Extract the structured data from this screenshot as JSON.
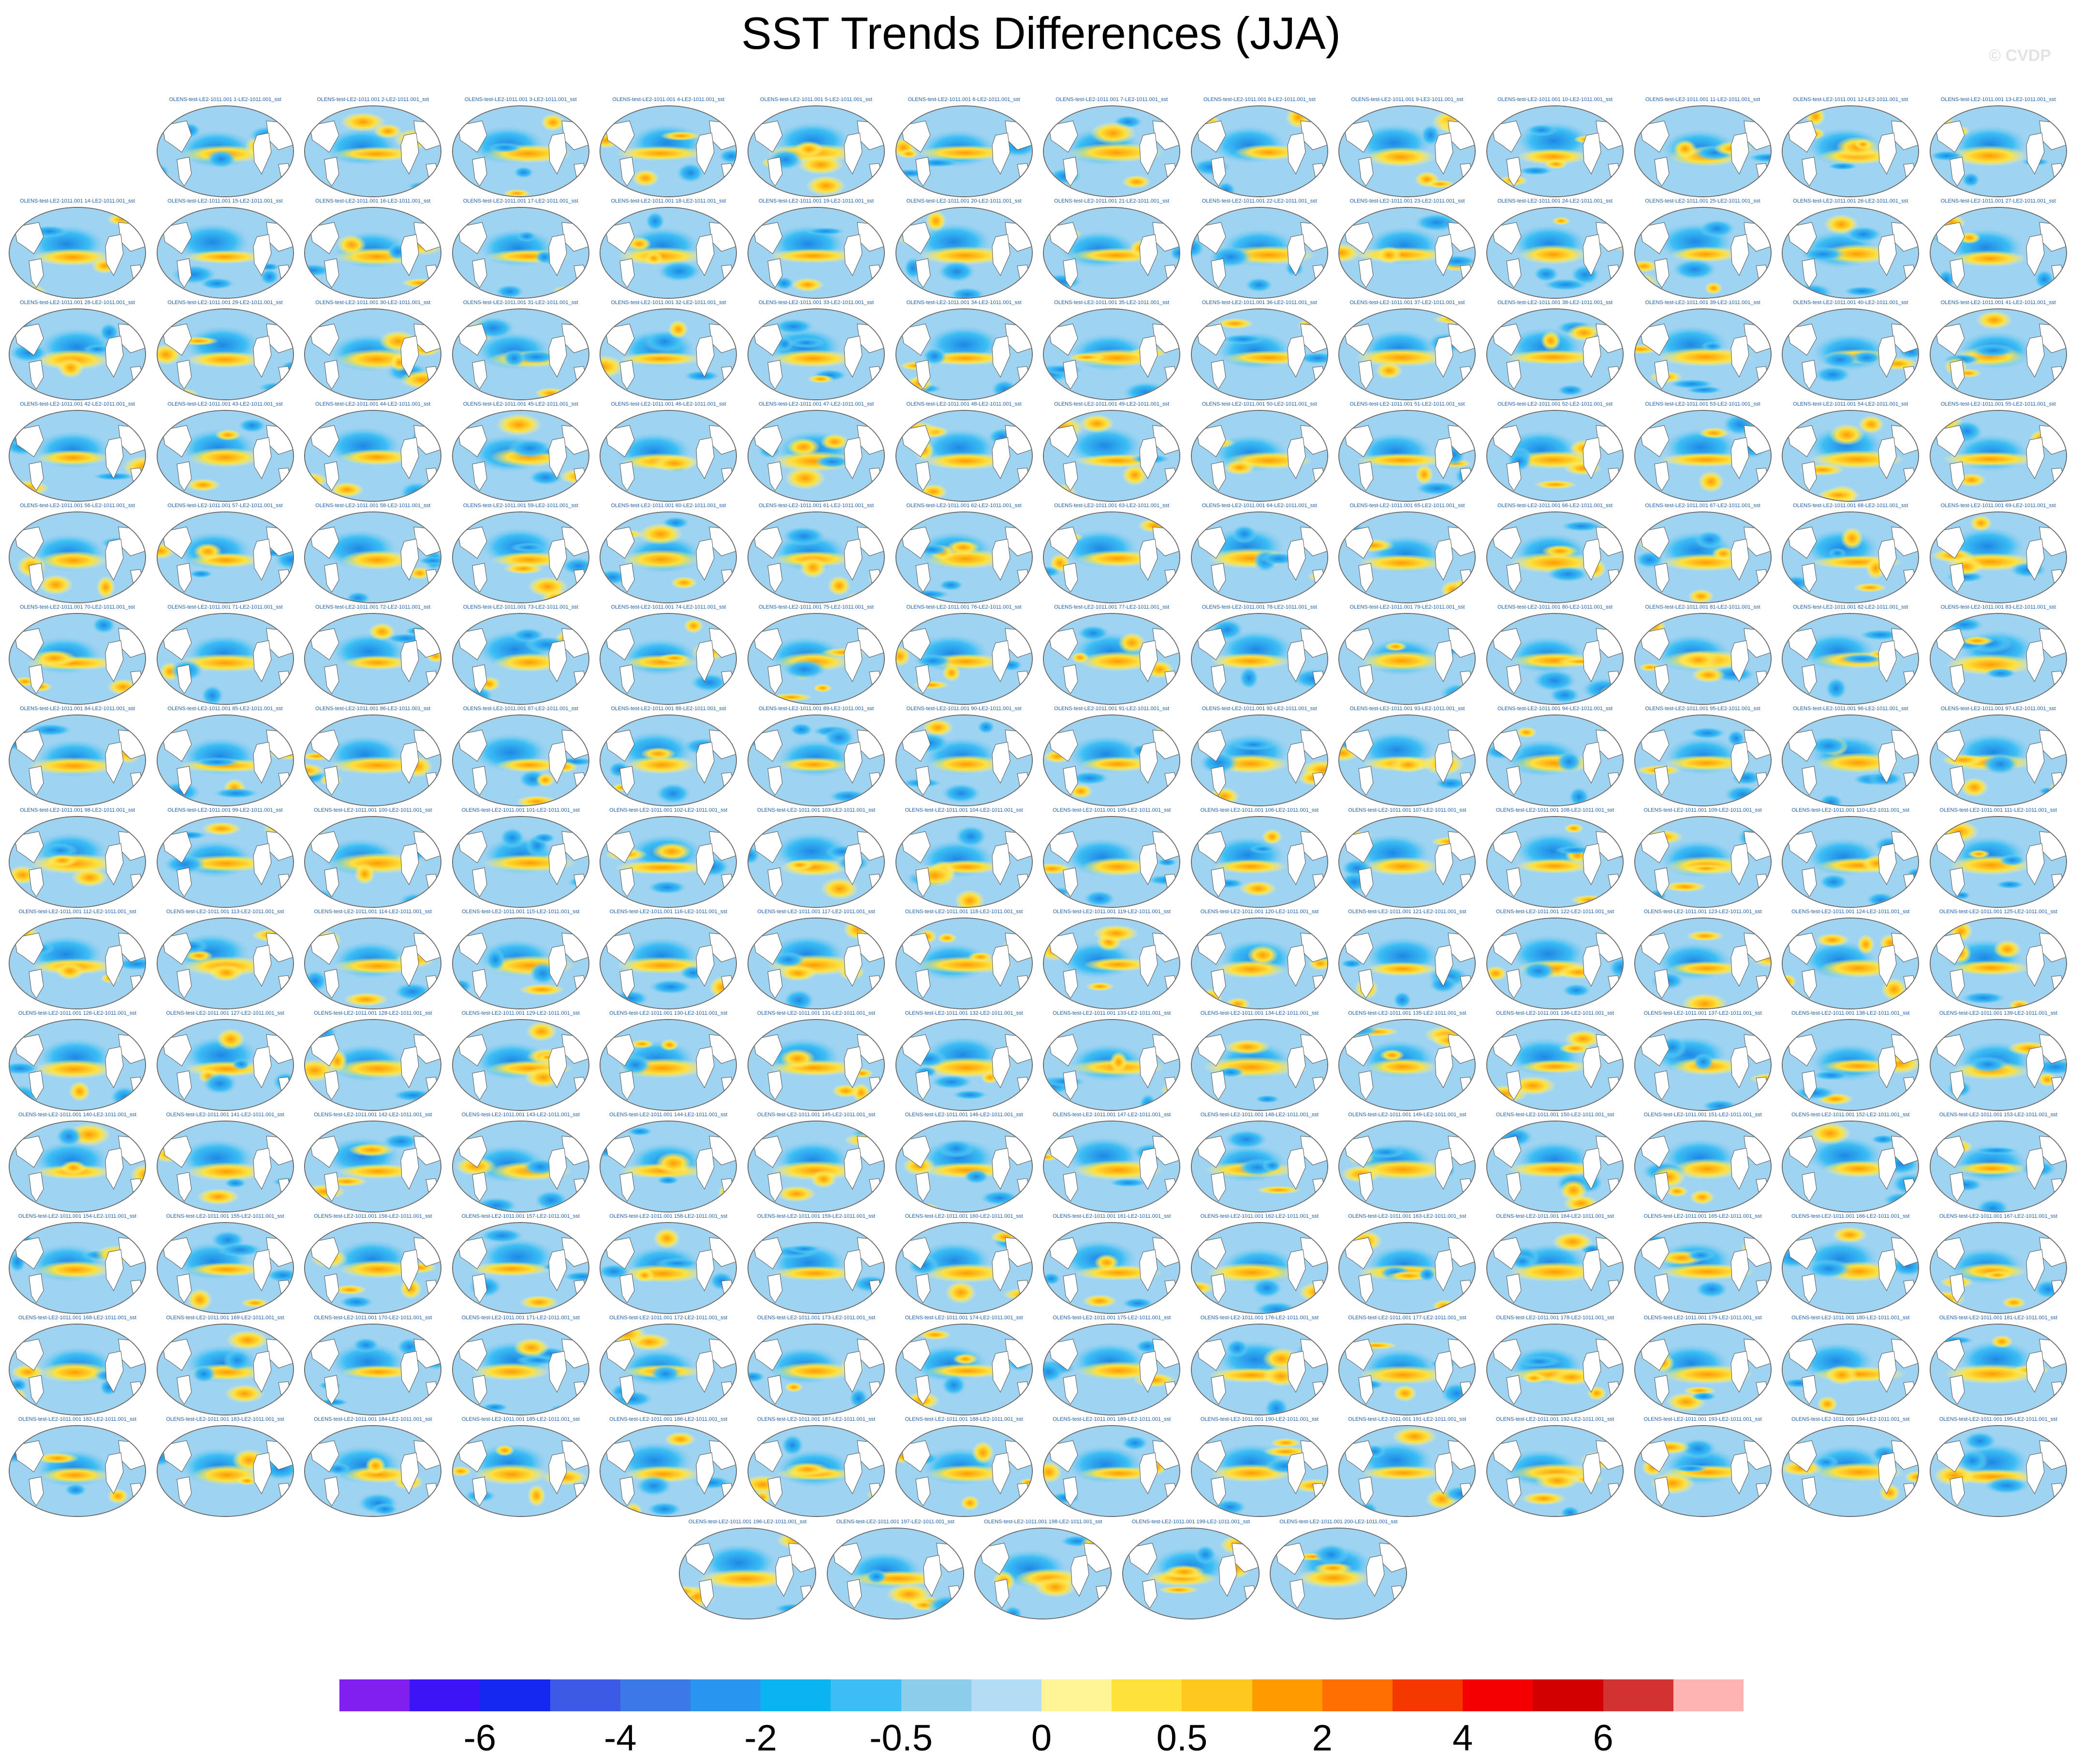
{
  "title": "SST Trends Differences (JJA)",
  "watermark": "© CVDP",
  "panel_label_prefix": "OLENS-test-LE2-1011.001 ",
  "panel_label_suffix": "-LE2-1011.001_sst",
  "panel_numbers": {
    "first": 1,
    "last": 200
  },
  "colorbar": {
    "colors": [
      "#8020f0",
      "#3c14f5",
      "#1428f0",
      "#3c5ae6",
      "#3c78e6",
      "#2896f0",
      "#0ab4f0",
      "#3cbef5",
      "#8ccdeb",
      "#b4dcf5",
      "#fff596",
      "#ffe13c",
      "#ffc81e",
      "#ff9b00",
      "#ff6e00",
      "#f53700",
      "#f50000",
      "#d20000",
      "#d23232",
      "#ffb4b4"
    ],
    "labels": [
      {
        "text": "-6",
        "boundary": 2
      },
      {
        "text": "-4",
        "boundary": 4
      },
      {
        "text": "-2",
        "boundary": 6
      },
      {
        "text": "-0.5",
        "boundary": 8
      },
      {
        "text": "0",
        "boundary": 10
      },
      {
        "text": "0.5",
        "boundary": 12
      },
      {
        "text": "2",
        "boundary": 14
      },
      {
        "text": "4",
        "boundary": 16
      },
      {
        "text": "6",
        "boundary": 18
      }
    ]
  }
}
